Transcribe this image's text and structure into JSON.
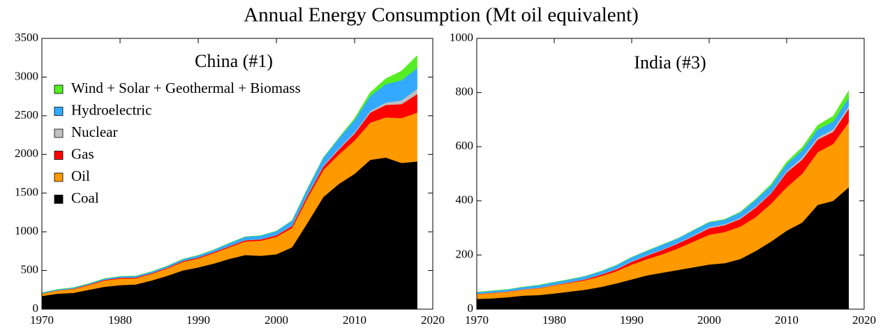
{
  "title": "Annual Energy Consumption (Mt oil equivalent)",
  "chart_data": [
    {
      "type": "area",
      "stacked": true,
      "title": "China (#1)",
      "x": [
        1970,
        1972,
        1974,
        1976,
        1978,
        1980,
        1982,
        1984,
        1986,
        1988,
        1990,
        1992,
        1994,
        1996,
        1998,
        2000,
        2002,
        2004,
        2006,
        2008,
        2010,
        2012,
        2014,
        2016,
        2018
      ],
      "xlim": [
        1970,
        2020
      ],
      "xticks": [
        1970,
        1980,
        1990,
        2000,
        2010,
        2020
      ],
      "ylim": [
        0,
        3500
      ],
      "yticks": [
        0,
        500,
        1000,
        1500,
        2000,
        2500,
        3000,
        3500
      ],
      "legend": "upper left",
      "series": [
        {
          "name": "Coal",
          "color": "#000000",
          "values": [
            170,
            200,
            210,
            250,
            290,
            310,
            320,
            370,
            430,
            500,
            540,
            590,
            650,
            700,
            690,
            710,
            800,
            1120,
            1450,
            1620,
            1750,
            1930,
            1960,
            1890,
            1910
          ]
        },
        {
          "name": "Oil",
          "color": "#ff9900",
          "values": [
            30,
            40,
            50,
            60,
            80,
            85,
            80,
            85,
            95,
            110,
            115,
            135,
            150,
            175,
            195,
            225,
            250,
            320,
            350,
            380,
            430,
            480,
            520,
            580,
            630
          ]
        },
        {
          "name": "Gas",
          "color": "#ff0000",
          "values": [
            3,
            4,
            5,
            8,
            10,
            12,
            10,
            10,
            11,
            12,
            13,
            13,
            14,
            15,
            17,
            20,
            25,
            35,
            45,
            65,
            90,
            130,
            160,
            180,
            240
          ]
        },
        {
          "name": "Nuclear",
          "color": "#c0c0c0",
          "values": [
            0,
            0,
            0,
            0,
            0,
            0,
            0,
            0,
            0,
            0,
            0,
            0,
            3,
            3,
            3,
            4,
            6,
            11,
            12,
            15,
            17,
            22,
            30,
            48,
            67
          ]
        },
        {
          "name": "Hydroelectric",
          "color": "#33aaff",
          "values": [
            10,
            11,
            13,
            13,
            15,
            17,
            19,
            20,
            21,
            25,
            28,
            30,
            38,
            42,
            47,
            50,
            65,
            80,
            100,
            130,
            160,
            195,
            240,
            260,
            270
          ]
        },
        {
          "name": "Wind + Solar + Geothermal + Biomass",
          "color": "#55ee22",
          "values": [
            0,
            0,
            0,
            0,
            0,
            0,
            0,
            0,
            0,
            0,
            0,
            0,
            0,
            0,
            0,
            0,
            0,
            0,
            3,
            8,
            20,
            45,
            70,
            120,
            160
          ]
        }
      ]
    },
    {
      "type": "area",
      "stacked": true,
      "title": "India (#3)",
      "x": [
        1970,
        1972,
        1974,
        1976,
        1978,
        1980,
        1982,
        1984,
        1986,
        1988,
        1990,
        1992,
        1994,
        1996,
        1998,
        2000,
        2002,
        2004,
        2006,
        2008,
        2010,
        2012,
        2014,
        2016,
        2018
      ],
      "xlim": [
        1970,
        2020
      ],
      "xticks": [
        1970,
        1980,
        1990,
        2000,
        2010,
        2020
      ],
      "ylim": [
        0,
        1000
      ],
      "yticks": [
        0,
        200,
        400,
        600,
        800,
        1000
      ],
      "series": [
        {
          "color": "#000000",
          "values": [
            38,
            40,
            44,
            50,
            52,
            58,
            65,
            72,
            82,
            95,
            110,
            125,
            135,
            145,
            155,
            165,
            170,
            185,
            215,
            250,
            290,
            320,
            385,
            400,
            450
          ]
        },
        {
          "color": "#ff9900",
          "values": [
            17,
            19,
            20,
            22,
            25,
            30,
            32,
            35,
            40,
            45,
            55,
            60,
            68,
            80,
            95,
            110,
            115,
            120,
            125,
            140,
            160,
            180,
            195,
            210,
            240
          ]
        },
        {
          "color": "#ff0000",
          "values": [
            1,
            1,
            1,
            1,
            1,
            1,
            2,
            3,
            5,
            7,
            10,
            13,
            16,
            18,
            20,
            24,
            25,
            28,
            35,
            38,
            55,
            52,
            46,
            45,
            50
          ]
        },
        {
          "color": "#c0c0c0",
          "values": [
            1,
            1,
            1,
            1,
            1,
            1,
            1,
            1,
            1,
            2,
            2,
            2,
            2,
            2,
            3,
            4,
            4,
            4,
            4,
            3,
            5,
            8,
            8,
            9,
            9
          ]
        },
        {
          "color": "#33aaff",
          "values": [
            6,
            7,
            7,
            8,
            10,
            10,
            10,
            11,
            12,
            13,
            15,
            16,
            18,
            17,
            19,
            18,
            17,
            20,
            25,
            26,
            26,
            27,
            30,
            29,
            31
          ]
        },
        {
          "color": "#55ee22",
          "values": [
            0,
            0,
            0,
            0,
            0,
            0,
            0,
            0,
            0,
            0,
            0,
            0,
            0,
            0,
            0,
            1,
            1,
            2,
            3,
            5,
            8,
            11,
            15,
            20,
            27
          ]
        }
      ]
    }
  ]
}
